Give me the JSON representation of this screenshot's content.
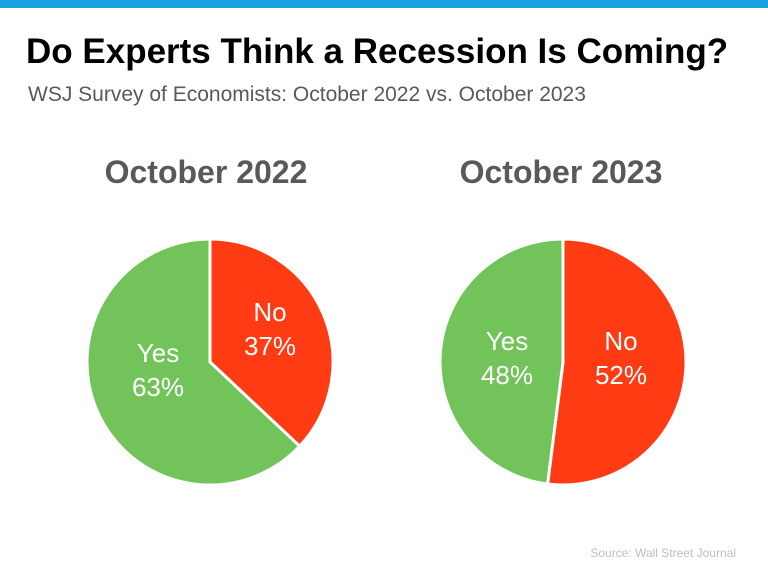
{
  "header": {
    "title": "Do Experts Think a Recession Is Coming?",
    "subtitle": "WSJ Survey of Economists: October 2022 vs. October 2023"
  },
  "colors": {
    "top_bar": "#1BA1E2",
    "yes": "#72C35A",
    "no": "#FF3B14"
  },
  "chart_data": [
    {
      "type": "pie",
      "title": "October 2022",
      "slices": [
        {
          "label": "No",
          "value": 37,
          "value_label": "37%",
          "color": "#FF3B14"
        },
        {
          "label": "Yes",
          "value": 63,
          "value_label": "63%",
          "color": "#72C35A"
        }
      ]
    },
    {
      "type": "pie",
      "title": "October 2023",
      "slices": [
        {
          "label": "No",
          "value": 52,
          "value_label": "52%",
          "color": "#FF3B14"
        },
        {
          "label": "Yes",
          "value": 48,
          "value_label": "48%",
          "color": "#72C35A"
        }
      ]
    }
  ],
  "footer": {
    "source": "Source: Wall Street Journal"
  }
}
